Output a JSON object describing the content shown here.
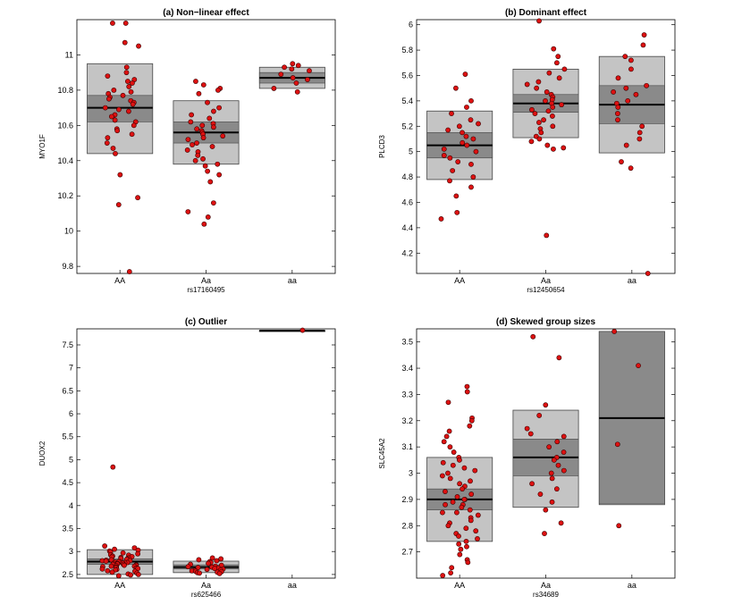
{
  "chart_data": [
    {
      "type": "box-jitter",
      "title": "(a) Non−linear effect",
      "xlabel": "rs17160495",
      "ylabel": "MYO1F",
      "categories": [
        "AA",
        "Aa",
        "aa"
      ],
      "ylim": [
        9.76,
        11.2
      ],
      "yticks": [
        9.8,
        10,
        10.2,
        10.4,
        10.6,
        10.8,
        11
      ],
      "ytick_labels": [
        "9.8",
        "10",
        "10.2",
        "10.4",
        "10.6",
        "10.8",
        "11"
      ],
      "groups": [
        {
          "box": [
            10.44,
            10.95
          ],
          "ci": [
            10.62,
            10.77
          ],
          "median": 10.7,
          "points": [
            11.18,
            11.18,
            11.07,
            11.05,
            10.93,
            10.9,
            10.88,
            10.86,
            10.85,
            10.84,
            10.82,
            10.8,
            10.79,
            10.78,
            10.77,
            10.76,
            10.75,
            10.74,
            10.73,
            10.72,
            10.7,
            10.69,
            10.68,
            10.66,
            10.65,
            10.63,
            10.62,
            10.6,
            10.58,
            10.57,
            10.55,
            10.53,
            10.5,
            10.47,
            10.44,
            10.32,
            10.19,
            10.15,
            9.77
          ]
        },
        {
          "box": [
            10.38,
            10.74
          ],
          "ci": [
            10.5,
            10.62
          ],
          "median": 10.56,
          "points": [
            10.85,
            10.83,
            10.81,
            10.8,
            10.78,
            10.73,
            10.7,
            10.68,
            10.66,
            10.64,
            10.62,
            10.61,
            10.6,
            10.59,
            10.58,
            10.57,
            10.56,
            10.55,
            10.54,
            10.53,
            10.52,
            10.5,
            10.49,
            10.48,
            10.46,
            10.45,
            10.43,
            10.41,
            10.4,
            10.38,
            10.37,
            10.34,
            10.32,
            10.28,
            10.16,
            10.11,
            10.08,
            10.04
          ]
        },
        {
          "box": [
            10.81,
            10.93
          ],
          "ci": [
            10.84,
            10.9
          ],
          "median": 10.87,
          "points": [
            10.95,
            10.94,
            10.93,
            10.92,
            10.91,
            10.89,
            10.87,
            10.86,
            10.84,
            10.81,
            10.79
          ]
        }
      ]
    },
    {
      "type": "box-jitter",
      "title": "(b) Dominant effect",
      "xlabel": "rs12450654",
      "ylabel": "PLCD3",
      "categories": [
        "AA",
        "Aa",
        "aa"
      ],
      "ylim": [
        4.04,
        6.04
      ],
      "yticks": [
        4.2,
        4.4,
        4.6,
        4.8,
        5,
        5.2,
        5.4,
        5.6,
        5.8,
        6
      ],
      "ytick_labels": [
        "4.2",
        "4.4",
        "4.6",
        "4.8",
        "5",
        "5.2",
        "5.4",
        "5.6",
        "5.8",
        "6"
      ],
      "groups": [
        {
          "box": [
            4.78,
            5.32
          ],
          "ci": [
            4.95,
            5.15
          ],
          "median": 5.05,
          "points": [
            5.61,
            5.5,
            5.4,
            5.35,
            5.3,
            5.25,
            5.22,
            5.2,
            5.17,
            5.15,
            5.12,
            5.1,
            5.07,
            5.05,
            5.02,
            5.0,
            4.97,
            4.95,
            4.92,
            4.9,
            4.85,
            4.8,
            4.77,
            4.72,
            4.65,
            4.52,
            4.47
          ]
        },
        {
          "box": [
            5.11,
            5.65
          ],
          "ci": [
            5.31,
            5.45
          ],
          "median": 5.38,
          "points": [
            6.03,
            5.81,
            5.75,
            5.7,
            5.65,
            5.62,
            5.58,
            5.55,
            5.53,
            5.5,
            5.47,
            5.45,
            5.43,
            5.41,
            5.4,
            5.38,
            5.37,
            5.35,
            5.33,
            5.32,
            5.3,
            5.28,
            5.25,
            5.23,
            5.2,
            5.18,
            5.15,
            5.12,
            5.1,
            5.08,
            5.05,
            5.03,
            5.02,
            4.34
          ]
        },
        {
          "box": [
            4.99,
            5.75
          ],
          "ci": [
            5.22,
            5.52
          ],
          "median": 5.37,
          "points": [
            5.92,
            5.84,
            5.75,
            5.72,
            5.65,
            5.58,
            5.52,
            5.5,
            5.47,
            5.45,
            5.4,
            5.38,
            5.35,
            5.3,
            5.25,
            5.2,
            5.15,
            5.1,
            5.05,
            4.92,
            4.87,
            4.04
          ]
        }
      ]
    },
    {
      "type": "box-jitter",
      "title": "(c) Outlier",
      "xlabel": "rs625466",
      "ylabel": "DUOX2",
      "categories": [
        "AA",
        "Aa",
        "aa"
      ],
      "ylim": [
        2.42,
        7.85
      ],
      "yticks": [
        2.5,
        3,
        3.5,
        4,
        4.5,
        5,
        5.5,
        6,
        6.5,
        7,
        7.5
      ],
      "ytick_labels": [
        "2.5",
        "3",
        "3.5",
        "4",
        "4.5",
        "5",
        "5.5",
        "6",
        "6.5",
        "7",
        "7.5"
      ],
      "groups": [
        {
          "box": [
            2.5,
            3.04
          ],
          "ci": [
            2.72,
            2.84
          ],
          "median": 2.78,
          "points": [
            4.84,
            3.12,
            3.08,
            3.05,
            3.03,
            3.01,
            2.99,
            2.97,
            2.95,
            2.93,
            2.92,
            2.9,
            2.89,
            2.88,
            2.87,
            2.86,
            2.85,
            2.84,
            2.83,
            2.82,
            2.81,
            2.8,
            2.8,
            2.79,
            2.78,
            2.78,
            2.77,
            2.76,
            2.76,
            2.75,
            2.74,
            2.74,
            2.73,
            2.72,
            2.72,
            2.71,
            2.7,
            2.7,
            2.69,
            2.68,
            2.68,
            2.67,
            2.66,
            2.65,
            2.64,
            2.63,
            2.62,
            2.61,
            2.6,
            2.58,
            2.57,
            2.55,
            2.53,
            2.51,
            2.5,
            2.49,
            2.47
          ]
        },
        {
          "box": [
            2.54,
            2.79
          ],
          "ci": [
            2.62,
            2.71
          ],
          "median": 2.66,
          "points": [
            2.86,
            2.84,
            2.82,
            2.8,
            2.78,
            2.76,
            2.74,
            2.72,
            2.7,
            2.68,
            2.67,
            2.66,
            2.65,
            2.64,
            2.63,
            2.62,
            2.61,
            2.6,
            2.59,
            2.58,
            2.57,
            2.56,
            2.55,
            2.54,
            2.53,
            2.52
          ]
        },
        {
          "box": [
            7.81,
            7.81
          ],
          "ci": [
            7.81,
            7.81
          ],
          "median": 7.81,
          "points": [
            7.82
          ]
        }
      ]
    },
    {
      "type": "box-jitter",
      "title": "(d) Skewed group sizes",
      "xlabel": "rs34689",
      "ylabel": "SLC45A2",
      "categories": [
        "AA",
        "Aa",
        "aa"
      ],
      "ylim": [
        2.6,
        3.55
      ],
      "yticks": [
        2.7,
        2.8,
        2.9,
        3,
        3.1,
        3.2,
        3.3,
        3.4,
        3.5
      ],
      "ytick_labels": [
        "2.7",
        "2.8",
        "2.9",
        "3",
        "3.1",
        "3.2",
        "3.3",
        "3.4",
        "3.5"
      ],
      "groups": [
        {
          "box": [
            2.74,
            3.06
          ],
          "ci": [
            2.86,
            2.94
          ],
          "median": 2.9,
          "points": [
            3.33,
            3.31,
            3.27,
            3.21,
            3.2,
            3.18,
            3.16,
            3.14,
            3.12,
            3.1,
            3.08,
            3.06,
            3.05,
            3.04,
            3.03,
            3.02,
            3.01,
            3.0,
            2.99,
            2.98,
            2.97,
            2.96,
            2.95,
            2.94,
            2.93,
            2.92,
            2.91,
            2.9,
            2.9,
            2.89,
            2.88,
            2.88,
            2.87,
            2.86,
            2.85,
            2.85,
            2.84,
            2.83,
            2.82,
            2.81,
            2.8,
            2.79,
            2.78,
            2.77,
            2.76,
            2.75,
            2.74,
            2.73,
            2.72,
            2.71,
            2.69,
            2.67,
            2.66,
            2.64,
            2.62,
            2.61
          ]
        },
        {
          "box": [
            2.87,
            3.24
          ],
          "ci": [
            2.99,
            3.13
          ],
          "median": 3.06,
          "points": [
            3.52,
            3.44,
            3.26,
            3.22,
            3.17,
            3.15,
            3.14,
            3.12,
            3.1,
            3.08,
            3.06,
            3.05,
            3.03,
            3.01,
            3.0,
            2.98,
            2.96,
            2.94,
            2.92,
            2.89,
            2.86,
            2.81,
            2.77
          ]
        },
        {
          "box": [
            2.88,
            3.54
          ],
          "ci": [
            2.885,
            3.54
          ],
          "median": 3.21,
          "points": [
            3.54,
            3.41,
            3.11,
            2.8
          ]
        }
      ]
    }
  ]
}
